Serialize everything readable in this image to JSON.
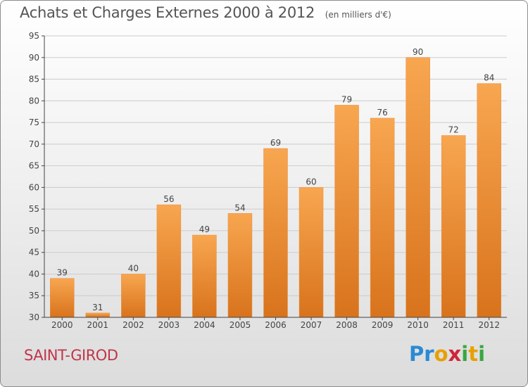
{
  "header": {
    "title": "Achats et Charges Externes 2000 à 2012",
    "unit": "(en milliers d'€)"
  },
  "commune": "SAINT-GIROD",
  "logo": {
    "text": "Proxiti",
    "letters": [
      {
        "char": "P",
        "color": "#2a8ad4"
      },
      {
        "char": "r",
        "color": "#2a8ad4"
      },
      {
        "char": "o",
        "color": "#e8a000"
      },
      {
        "char": "x",
        "color": "#d2233a"
      },
      {
        "char": "i",
        "color": "#3aa640"
      },
      {
        "char": "t",
        "color": "#e8a000"
      },
      {
        "char": "i",
        "color": "#3aa640"
      }
    ]
  },
  "colors": {
    "bar_light": "#f8a650",
    "bar_dark": "#d8731c",
    "grid": "#cccccc",
    "axis": "#444444",
    "text": "#444444"
  },
  "chart_data": {
    "type": "bar",
    "categories": [
      "2000",
      "2001",
      "2002",
      "2003",
      "2004",
      "2005",
      "2006",
      "2007",
      "2008",
      "2009",
      "2010",
      "2011",
      "2012"
    ],
    "values": [
      39,
      31,
      40,
      56,
      49,
      54,
      69,
      60,
      79,
      76,
      90,
      72,
      84
    ],
    "title": "Achats et Charges Externes 2000 à 2012",
    "xlabel": "",
    "ylabel": "",
    "ylim": [
      30,
      95
    ],
    "yticks": [
      30,
      35,
      40,
      45,
      50,
      55,
      60,
      65,
      70,
      75,
      80,
      85,
      90,
      95
    ],
    "grid": true,
    "data_labels": true
  }
}
